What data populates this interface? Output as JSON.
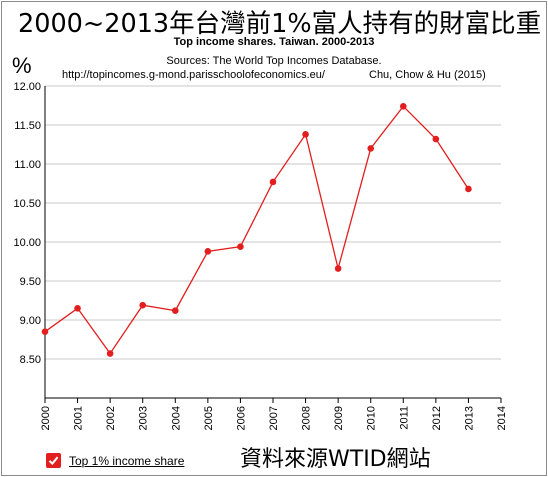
{
  "header": {
    "zh_title": "2000~2013年台灣前1%富人持有的財富比重",
    "subtitle": "Top income shares. Taiwan. 2000-2013",
    "unit": "%",
    "sources": "Sources: The World Top Incomes Database.",
    "url": "http://topincomes.g-mond.parisschoolofeconomics.eu/",
    "authors": "Chu, Chow & Hu (2015)"
  },
  "legend": {
    "label": "Top 1% income share",
    "checked": true
  },
  "watermark": "資料來源WTID網站",
  "colors": {
    "series": "#e31e1e",
    "grid": "#c8c8c8",
    "axis": "#000000"
  },
  "chart_data": {
    "type": "line",
    "title": "Top income shares. Taiwan. 2000-2013",
    "xlabel": "",
    "ylabel": "%",
    "xlim": [
      2000,
      2014
    ],
    "ylim": [
      8.0,
      12.0
    ],
    "x_ticks": [
      "2000",
      "2001",
      "2002",
      "2003",
      "2004",
      "2005",
      "2006",
      "2007",
      "2008",
      "2009",
      "2010",
      "2011",
      "2012",
      "2013",
      "2014"
    ],
    "y_ticks": [
      "8.50",
      "9.00",
      "9.50",
      "10.00",
      "10.50",
      "11.00",
      "11.50",
      "12.00"
    ],
    "grid": "horizontal",
    "legend_position": "bottom-left",
    "series": [
      {
        "name": "Top 1% income share",
        "x": [
          2000,
          2001,
          2002,
          2003,
          2004,
          2005,
          2006,
          2007,
          2008,
          2009,
          2010,
          2011,
          2012,
          2013
        ],
        "values": [
          8.85,
          9.15,
          8.57,
          9.19,
          9.12,
          9.88,
          9.94,
          10.77,
          11.38,
          9.66,
          11.2,
          11.74,
          11.32,
          10.68
        ]
      }
    ]
  }
}
